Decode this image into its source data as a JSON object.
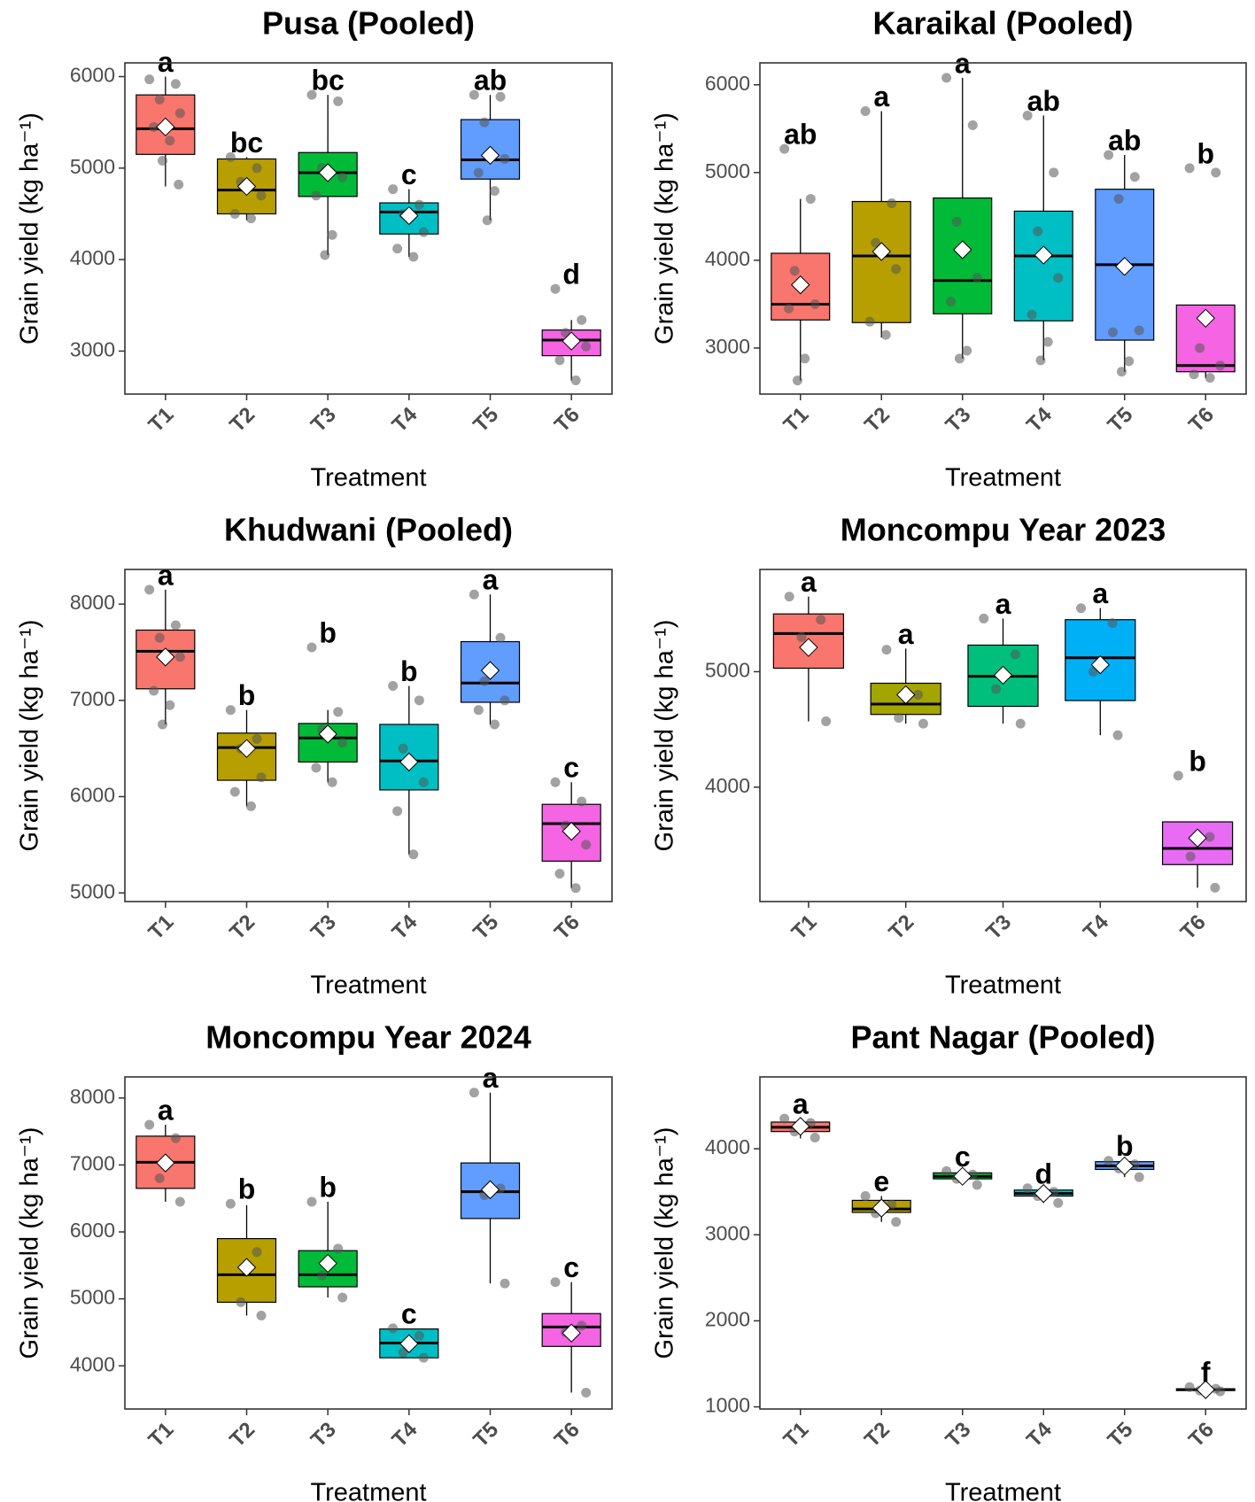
{
  "chart_data": [
    {
      "type": "box",
      "title": "Pusa (Pooled)",
      "x_label": "Treatment",
      "y_label": "Grain yield (kg ha⁻¹)",
      "categories": [
        "T1",
        "T2",
        "T3",
        "T4",
        "T5",
        "T6"
      ],
      "colors": [
        "#F8766D",
        "#B79F00",
        "#00BA38",
        "#00BFC4",
        "#619CFF",
        "#F564E3"
      ],
      "ylim": [
        2530,
        6150
      ],
      "yticks": [
        3000,
        4000,
        5000,
        6000
      ],
      "low": [
        4800,
        4430,
        4050,
        4030,
        4430,
        2680
      ],
      "q1": [
        5150,
        4500,
        4690,
        4280,
        4880,
        2950
      ],
      "median": [
        5430,
        4760,
        4950,
        4520,
        5090,
        3120
      ],
      "q3": [
        5800,
        5100,
        5170,
        4620,
        5530,
        3230
      ],
      "high": [
        6000,
        5120,
        5800,
        4770,
        5800,
        3340
      ],
      "mean": [
        5450,
        4800,
        4950,
        4480,
        5140,
        3110
      ],
      "letters": [
        "a",
        "bc",
        "bc",
        "c",
        "ab",
        "d"
      ],
      "points": [
        [
          5970,
          5920,
          5750,
          5600,
          5450,
          5300,
          5080,
          4820
        ],
        [
          5120,
          5000,
          4850,
          4700,
          4500,
          4450
        ],
        [
          5800,
          5730,
          5000,
          4900,
          4700,
          4270,
          4050
        ],
        [
          4770,
          4600,
          4500,
          4300,
          4120,
          4030
        ],
        [
          5800,
          5780,
          5500,
          5100,
          4950,
          4750,
          4430
        ],
        [
          3680,
          3340,
          3200,
          3050,
          2900,
          2680
        ]
      ]
    },
    {
      "type": "box",
      "title": "Karaikal (Pooled)",
      "x_label": "Treatment",
      "y_label": "Grain yield (kg ha⁻¹)",
      "categories": [
        "T1",
        "T2",
        "T3",
        "T4",
        "T5",
        "T6"
      ],
      "colors": [
        "#F8766D",
        "#B79F00",
        "#00BA38",
        "#00BFC4",
        "#619CFF",
        "#F564E3"
      ],
      "ylim": [
        2475,
        6250
      ],
      "yticks": [
        3000,
        4000,
        5000,
        6000
      ],
      "low": [
        2630,
        3120,
        2880,
        2860,
        2730,
        2660
      ],
      "q1": [
        3320,
        3290,
        3390,
        3310,
        3090,
        2730
      ],
      "median": [
        3500,
        4050,
        3770,
        4050,
        3950,
        2800
      ],
      "q3": [
        4080,
        4670,
        4710,
        4560,
        4810,
        3490
      ],
      "high": [
        4700,
        5700,
        6080,
        5650,
        5200,
        3490
      ],
      "mean": [
        3720,
        4100,
        4120,
        4060,
        3930,
        3340
      ],
      "letters": [
        "ab",
        "a",
        "a",
        "ab",
        "ab",
        "b"
      ],
      "points": [
        [
          5270,
          4700,
          3880,
          3500,
          3450,
          2880,
          2630
        ],
        [
          5700,
          4650,
          4200,
          3900,
          3300,
          3150
        ],
        [
          6080,
          5540,
          4440,
          3800,
          3530,
          2970,
          2880
        ],
        [
          5650,
          5000,
          4330,
          3800,
          3380,
          3070,
          2860
        ],
        [
          5200,
          4950,
          4700,
          3200,
          3180,
          2850,
          2730
        ],
        [
          5050,
          5000,
          3000,
          2800,
          2700,
          2660
        ]
      ]
    },
    {
      "type": "box",
      "title": "Khudwani (Pooled)",
      "x_label": "Treatment",
      "y_label": "Grain yield (kg ha⁻¹)",
      "categories": [
        "T1",
        "T2",
        "T3",
        "T4",
        "T5",
        "T6"
      ],
      "colors": [
        "#F8766D",
        "#B79F00",
        "#00BA38",
        "#00BFC4",
        "#619CFF",
        "#F564E3"
      ],
      "ylim": [
        4910,
        8360
      ],
      "yticks": [
        5000,
        6000,
        7000,
        8000
      ],
      "low": [
        6750,
        5900,
        6150,
        5400,
        6750,
        5050
      ],
      "q1": [
        7120,
        6170,
        6360,
        6070,
        6980,
        5330
      ],
      "median": [
        7510,
        6510,
        6610,
        6370,
        7180,
        5720
      ],
      "q3": [
        7730,
        6660,
        6760,
        6750,
        7610,
        5920
      ],
      "high": [
        8150,
        6900,
        6900,
        7150,
        8100,
        6150
      ],
      "mean": [
        7450,
        6500,
        6650,
        6360,
        7310,
        5640
      ],
      "letters": [
        "a",
        "b",
        "b",
        "b",
        "a",
        "c"
      ],
      "points": [
        [
          8150,
          7780,
          7650,
          7450,
          7100,
          6950,
          6750
        ],
        [
          6900,
          6600,
          6500,
          6200,
          6050,
          5900
        ],
        [
          7550,
          6880,
          6700,
          6560,
          6300,
          6150
        ],
        [
          7150,
          7000,
          6500,
          6150,
          5850,
          5400
        ],
        [
          8100,
          7650,
          7200,
          7000,
          6900,
          6750
        ],
        [
          6150,
          5950,
          5700,
          5500,
          5200,
          5050
        ]
      ]
    },
    {
      "type": "box",
      "title": "Moncompu Year 2023",
      "x_label": "Treatment",
      "y_label": "Grain yield (kg ha⁻¹)",
      "categories": [
        "T1",
        "T2",
        "T3",
        "T4",
        "T6"
      ],
      "colors": [
        "#F8766D",
        "#A3A500",
        "#00BF7D",
        "#00B0F6",
        "#E76BF3"
      ],
      "ylim": [
        3010,
        5885
      ],
      "yticks": [
        4000,
        5000
      ],
      "low": [
        4570,
        4550,
        4550,
        4450,
        3130
      ],
      "q1": [
        5030,
        4630,
        4700,
        4750,
        3330
      ],
      "median": [
        5330,
        4720,
        4960,
        5120,
        3470
      ],
      "q3": [
        5500,
        4900,
        5230,
        5450,
        3700
      ],
      "high": [
        5650,
        5200,
        5460,
        5550,
        3700
      ],
      "mean": [
        5210,
        4800,
        4970,
        5060,
        3560
      ],
      "letters": [
        "a",
        "a",
        "a",
        "a",
        "b"
      ],
      "points": [
        [
          5650,
          5450,
          5300,
          4570
        ],
        [
          5190,
          4800,
          4600,
          4550
        ],
        [
          5460,
          5150,
          4850,
          4550
        ],
        [
          5550,
          5420,
          5000,
          4450
        ],
        [
          4100,
          3570,
          3400,
          3130
        ]
      ]
    },
    {
      "type": "box",
      "title": "Moncompu Year 2024",
      "x_label": "Treatment",
      "y_label": "Grain yield (kg ha⁻¹)",
      "categories": [
        "T1",
        "T2",
        "T3",
        "T4",
        "T5",
        "T6"
      ],
      "colors": [
        "#F8766D",
        "#B79F00",
        "#00BA38",
        "#00BFC4",
        "#619CFF",
        "#F564E3"
      ],
      "ylim": [
        3355,
        8315
      ],
      "yticks": [
        4000,
        5000,
        6000,
        7000,
        8000
      ],
      "low": [
        6450,
        4750,
        5020,
        4120,
        5230,
        3600
      ],
      "q1": [
        6650,
        4950,
        5180,
        4120,
        6200,
        4290
      ],
      "median": [
        7040,
        5360,
        5360,
        4340,
        6600,
        4580
      ],
      "q3": [
        7430,
        5900,
        5720,
        4550,
        7030,
        4780
      ],
      "high": [
        7600,
        6400,
        6450,
        4550,
        8080,
        5250
      ],
      "mean": [
        7030,
        5470,
        5530,
        4330,
        6630,
        4490
      ],
      "letters": [
        "a",
        "b",
        "b",
        "c",
        "a",
        "c"
      ],
      "points": [
        [
          7600,
          7400,
          6800,
          6450
        ],
        [
          6420,
          5700,
          4950,
          4750
        ],
        [
          6450,
          5750,
          5350,
          5020
        ],
        [
          4560,
          4450,
          4200,
          4120
        ],
        [
          8080,
          6650,
          6550,
          5230
        ],
        [
          5250,
          4600,
          4500,
          3600
        ]
      ]
    },
    {
      "type": "box",
      "title": "Pant Nagar (Pooled)",
      "x_label": "Treatment",
      "y_label": "Grain yield (kg ha⁻¹)",
      "categories": [
        "T1",
        "T2",
        "T3",
        "T4",
        "T5",
        "T6"
      ],
      "colors": [
        "#F8766D",
        "#B79F00",
        "#00BA38",
        "#00BFC4",
        "#619CFF",
        "#F564E3"
      ],
      "ylim": [
        975,
        4835
      ],
      "yticks": [
        1000,
        2000,
        3000,
        4000
      ],
      "low": [
        4120,
        3150,
        3580,
        3370,
        3670,
        1180
      ],
      "q1": [
        4200,
        3260,
        3650,
        3450,
        3760,
        1190
      ],
      "median": [
        4250,
        3300,
        3680,
        3480,
        3800,
        1200
      ],
      "q3": [
        4310,
        3400,
        3720,
        3520,
        3850,
        1210
      ],
      "high": [
        4350,
        3450,
        3740,
        3540,
        3860,
        1230
      ],
      "mean": [
        4260,
        3310,
        3680,
        3480,
        3800,
        1200
      ],
      "letters": [
        "a",
        "e",
        "c",
        "d",
        "b",
        "f"
      ],
      "points": [
        [
          4350,
          4300,
          4200,
          4130
        ],
        [
          3450,
          3350,
          3250,
          3150
        ],
        [
          3740,
          3700,
          3650,
          3580
        ],
        [
          3540,
          3500,
          3450,
          3370
        ],
        [
          3860,
          3820,
          3770,
          3670
        ],
        [
          1230,
          1210,
          1190,
          1180
        ]
      ]
    }
  ]
}
